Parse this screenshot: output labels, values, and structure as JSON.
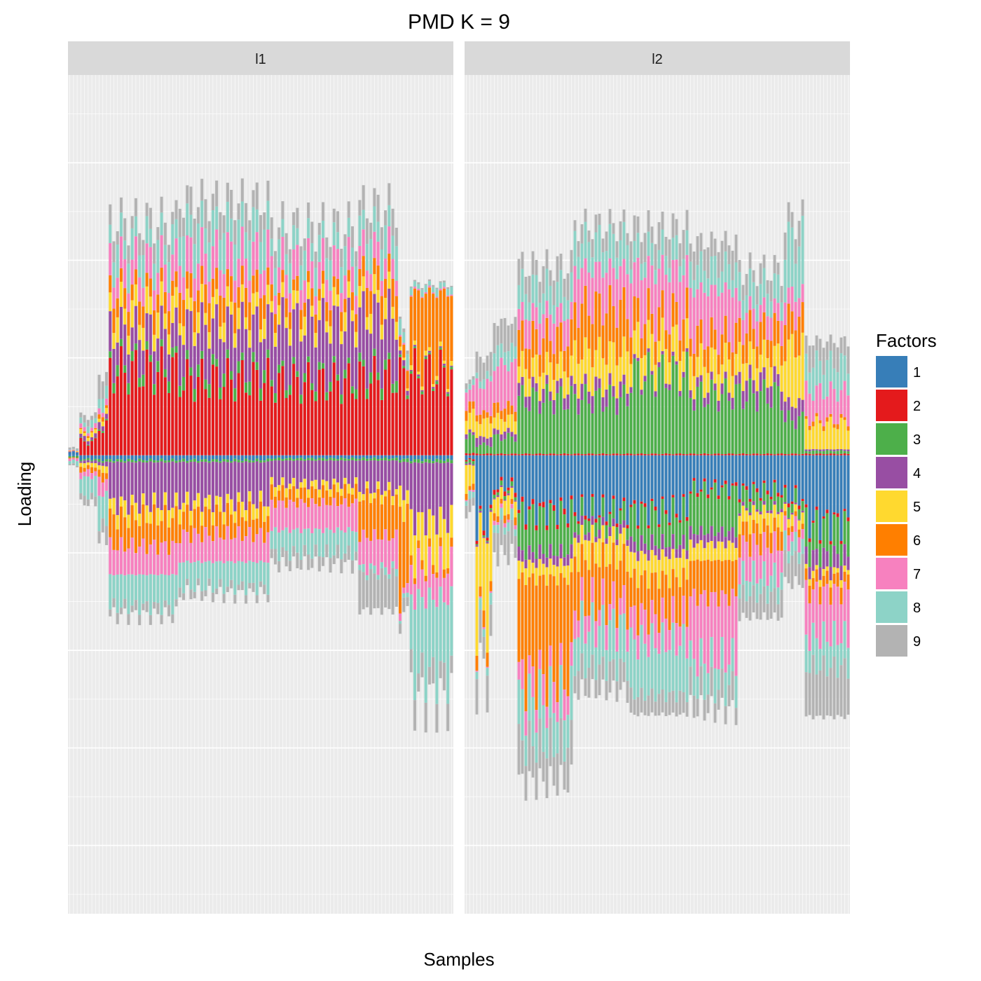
{
  "chart_data": {
    "type": "bar",
    "stacked": "diverging",
    "title": "PMD K = 9",
    "xlabel": "Samples",
    "ylabel": "Loading",
    "x_tick_labels": "none",
    "y_tick_labels": "none",
    "grid": true,
    "legend_position": "right",
    "legend_title": "Factors",
    "factors": [
      {
        "label": "1",
        "color": "#377EB8"
      },
      {
        "label": "2",
        "color": "#E41A1C"
      },
      {
        "label": "3",
        "color": "#4DAF4A"
      },
      {
        "label": "4",
        "color": "#984EA3"
      },
      {
        "label": "5",
        "color": "#FFD92F"
      },
      {
        "label": "6",
        "color": "#FF7F00"
      },
      {
        "label": "7",
        "color": "#F781BF"
      },
      {
        "label": "8",
        "color": "#8DD3C7"
      },
      {
        "label": "9",
        "color": "#B3B3B3"
      }
    ],
    "panels": [
      {
        "label": "l1",
        "n_samples": 105,
        "ylim": [
          -4.7,
          3.9
        ],
        "bands": [
          {
            "from": 0,
            "to": 2,
            "pos": [
              0.04,
              0,
              0,
              0.01,
              0.01,
              0,
              0.01,
              0.01,
              0.02
            ],
            "neg": [
              0.01,
              0,
              0.02,
              0,
              0,
              0.01,
              0.03,
              0.05,
              0.02
            ]
          },
          {
            "from": 3,
            "to": 7,
            "pos": [
              0,
              0.18,
              0.01,
              0.05,
              0.05,
              0.02,
              0.05,
              0.08,
              0.08
            ],
            "neg": [
              0.05,
              0,
              0.02,
              0.03,
              0.05,
              0.06,
              0.08,
              0.25,
              0.1
            ]
          },
          {
            "from": 8,
            "to": 10,
            "pos": [
              0,
              0.38,
              0.02,
              0.08,
              0.06,
              0.05,
              0.08,
              0.15,
              0.25
            ],
            "neg": [
              0.06,
              0,
              0.03,
              0.05,
              0.08,
              0.1,
              0.2,
              0.4,
              0.2
            ]
          },
          {
            "from": 11,
            "to": 29,
            "pos": [
              0,
              1.12,
              0.12,
              0.42,
              0.28,
              0.25,
              0.34,
              0.34,
              0.23
            ],
            "neg": [
              0.06,
              0,
              0.03,
              0.55,
              0.18,
              0.38,
              0.38,
              0.42,
              0.12
            ]
          },
          {
            "from": 30,
            "to": 54,
            "pos": [
              0,
              1.0,
              0.14,
              0.58,
              0.22,
              0.32,
              0.4,
              0.42,
              0.3
            ],
            "neg": [
              0.06,
              0,
              0.03,
              0.52,
              0.16,
              0.28,
              0.36,
              0.33,
              0.1
            ]
          },
          {
            "from": 55,
            "to": 78,
            "pos": [
              0,
              0.96,
              0.1,
              0.7,
              0.2,
              0.2,
              0.34,
              0.31,
              0.22
            ],
            "neg": [
              0.04,
              0,
              0.03,
              0.3,
              0.1,
              0.16,
              0.36,
              0.3,
              0.16
            ]
          },
          {
            "from": 79,
            "to": 89,
            "pos": [
              0,
              1.02,
              0.12,
              0.72,
              0.22,
              0.3,
              0.28,
              0.36,
              0.28
            ],
            "neg": [
              0.04,
              0,
              0.03,
              0.38,
              0.1,
              0.52,
              0.42,
              0.08,
              0.48
            ]
          },
          {
            "from": 90,
            "to": 92,
            "pos": [
              0,
              1.04,
              0.04,
              0.06,
              0.04,
              0.18,
              0.02,
              0.2,
              0.04
            ],
            "neg": [
              0.05,
              0,
              0.04,
              0.4,
              0.25,
              1.1,
              0.1,
              0.05,
              0.15
            ]
          },
          {
            "from": 93,
            "to": 104,
            "pos": [
              0,
              1.1,
              0.03,
              0.02,
              0.05,
              0.95,
              0.02,
              0.08,
              0.02
            ],
            "neg": [
              0.06,
              0,
              0.04,
              0.75,
              0.52,
              0.1,
              0.42,
              1.02,
              0.32
            ]
          }
        ]
      },
      {
        "label": "l2",
        "n_samples": 110,
        "ylim": [
          -4.7,
          3.9
        ],
        "bands": [
          {
            "from": 0,
            "to": 2,
            "pos": [
              0,
              0.03,
              0.22,
              0.05,
              0.24,
              0.12,
              0.22,
              0.06,
              0.06
            ],
            "neg": [
              0.05,
              0.02,
              0.04,
              0.02,
              0.3,
              0.07,
              0.02,
              0.08,
              0.15
            ]
          },
          {
            "from": 3,
            "to": 7,
            "pos": [
              0,
              0.02,
              0.12,
              0.1,
              0.22,
              0.1,
              0.38,
              0.1,
              0.26
            ],
            "neg": [
              0.92,
              0.05,
              0.02,
              0.02,
              1.12,
              0.18,
              0.02,
              0.12,
              0.4
            ]
          },
          {
            "from": 8,
            "to": 14,
            "pos": [
              0,
              0.02,
              0.22,
              0.08,
              0.18,
              0.15,
              0.55,
              0.22,
              0.35
            ],
            "neg": [
              0.4,
              0.05,
              0.05,
              0.02,
              0.2,
              0.08,
              0.05,
              0.12,
              0.35
            ]
          },
          {
            "from": 15,
            "to": 30,
            "pos": [
              0,
              0.02,
              0.72,
              0.15,
              0.3,
              0.38,
              0.32,
              0.34,
              0.28
            ],
            "neg": [
              0.72,
              0.06,
              0.5,
              0.15,
              0.2,
              1.3,
              0.32,
              0.56,
              0.52
            ]
          },
          {
            "from": 31,
            "to": 46,
            "pos": [
              0,
              0.02,
              0.72,
              0.18,
              0.45,
              0.6,
              0.5,
              0.38,
              0.2
            ],
            "neg": [
              0.72,
              0.04,
              0.2,
              0.1,
              0.3,
              0.6,
              0.3,
              0.54,
              0.32
            ]
          },
          {
            "from": 47,
            "to": 63,
            "pos": [
              0,
              0.02,
              1.05,
              0.06,
              0.38,
              0.35,
              0.6,
              0.26,
              0.3
            ],
            "neg": [
              0.72,
              0.04,
              0.4,
              0.16,
              0.3,
              0.5,
              0.35,
              0.7,
              0.26
            ]
          },
          {
            "from": 64,
            "to": 77,
            "pos": [
              0,
              0.02,
              0.78,
              0.12,
              0.35,
              0.32,
              0.6,
              0.32,
              0.32
            ],
            "neg": [
              0.42,
              0.04,
              0.55,
              0.16,
              0.22,
              0.48,
              0.82,
              0.38,
              0.3
            ]
          },
          {
            "from": 78,
            "to": 90,
            "pos": [
              0,
              0.02,
              0.78,
              0.22,
              0.32,
              0.34,
              0.26,
              0.3,
              0.22
            ],
            "neg": [
              0.45,
              0.04,
              0.2,
              0.04,
              0.2,
              0.25,
              0.4,
              0.26,
              0.3
            ]
          },
          {
            "from": 91,
            "to": 96,
            "pos": [
              0,
              0.02,
              0.45,
              0.22,
              0.75,
              0.4,
              0.3,
              0.7,
              0.28
            ],
            "neg": [
              0.55,
              0.04,
              0.15,
              0.02,
              0.12,
              0.08,
              0.18,
              0.2,
              0.35
            ]
          },
          {
            "from": 97,
            "to": 109,
            "pos": [
              0,
              0.02,
              0.04,
              0.02,
              0.34,
              0.05,
              0.38,
              0.38,
              0.28
            ],
            "neg": [
              0.88,
              0.04,
              0.4,
              0.22,
              0.08,
              0.18,
              0.6,
              0.4,
              0.66
            ]
          }
        ]
      }
    ]
  }
}
